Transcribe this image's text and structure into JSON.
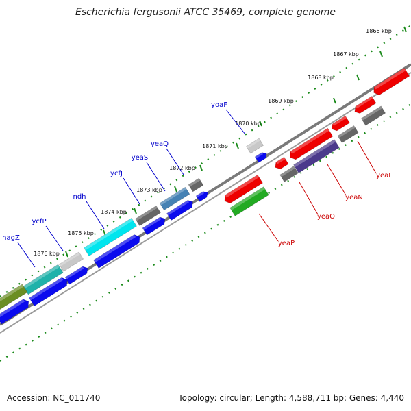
{
  "title": "Escherichia fergusonii ATCC 35469, complete genome",
  "footer": {
    "accession": "Accession: NC_011740",
    "summary": "Topology: circular; Length: 4,588,711 bp; Genes: 4,440"
  },
  "ruler": {
    "ticks": [
      "1866 kbp",
      "1867 kbp",
      "1868 kbp",
      "1869 kbp",
      "1870 kbp",
      "1871 kbp",
      "1872 kbp",
      "1873 kbp",
      "1874 kbp",
      "1875 kbp",
      "1876 kbp"
    ]
  },
  "colors": {
    "backbone": "#7a7a7a",
    "ruler_dots": "#1a8a1a",
    "forward_label": "#0000cc",
    "reverse_label": "#cc0000"
  },
  "genes_forward": [
    {
      "name": "yoaF",
      "color": "#c8c8c8"
    },
    {
      "name": "yeaQ",
      "color": "#4682b4"
    },
    {
      "name": "yeaS",
      "color": "#4682b4"
    },
    {
      "name": "ycfJ",
      "color": "#666666"
    },
    {
      "name": "ndh",
      "color": "#00e5ee"
    },
    {
      "name": "ycfP",
      "color": "#c8c8c8"
    },
    {
      "name": "nagZ",
      "color": "#20b2aa"
    }
  ],
  "genes_reverse": [
    {
      "name": "yeaL",
      "color": "#ee0000"
    },
    {
      "name": "yeaN",
      "color": "#4b3a8c"
    },
    {
      "name": "yeaO",
      "color": "#ee0000"
    },
    {
      "name": "yeaP",
      "color": "#22aa22"
    }
  ]
}
